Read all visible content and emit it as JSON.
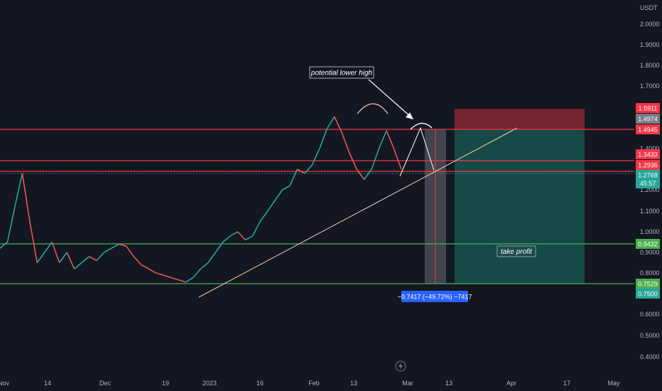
{
  "currency_label": "USDT",
  "y_ticks": [
    "2.0000",
    "1.9000",
    "1.8000",
    "1.7000",
    "1.4000",
    "1.2000",
    "1.1000",
    "1.0000",
    "0.9000",
    "0.8000",
    "0.6000",
    "0.5000",
    "0.4000"
  ],
  "x_ticks": [
    "Nov",
    "14",
    "Dec",
    "19",
    "2023",
    "16",
    "Feb",
    "13",
    "Mar",
    "13",
    "Apr",
    "17",
    "May"
  ],
  "price_tags": {
    "sl_top": "1.5911",
    "entry": "1.4974",
    "level_a": "1.4945",
    "level_b": "1.3433",
    "level_c": "1.2936",
    "current": "1.2768",
    "countdown": "45:57",
    "tp_line": "0.9432",
    "support": "0.7529",
    "target": "0.7500"
  },
  "annotations": {
    "lower_high": "potential lower high",
    "take_profit": "take profit",
    "measure": "−0.7417 (−49.72%) −7417"
  },
  "colors": {
    "background": "#131722",
    "up": "#26a69a",
    "down": "#ef5350",
    "resistance": "#f23645",
    "support": "#4caf50",
    "trend": "#f5c6a5"
  },
  "chart_data": {
    "type": "line",
    "symbol_quote": "USDT",
    "x_ticks": [
      "Nov",
      "14",
      "Dec",
      "19",
      "2023",
      "16",
      "Feb",
      "13",
      "Mar",
      "13",
      "Apr",
      "17",
      "May"
    ],
    "y_ticks": [
      2.0,
      1.9,
      1.8,
      1.7,
      1.4,
      1.2,
      1.1,
      1.0,
      0.9,
      0.8,
      0.6,
      0.5,
      0.4
    ],
    "horizontal_levels": [
      1.4945,
      1.3433,
      1.2936,
      0.9432,
      0.7529
    ],
    "price_labels": [
      1.5911,
      1.4974,
      1.4945,
      1.3433,
      1.2936,
      1.2768,
      0.9432,
      0.7529,
      0.75
    ],
    "current_price": 1.2768,
    "trade": {
      "entry": 1.4974,
      "stop": 1.5911,
      "target": 0.75
    },
    "series": [
      {
        "values": [
          0.92,
          0.95,
          1.12,
          1.28,
          1.05,
          0.85,
          0.9,
          0.95,
          0.85,
          0.9,
          0.82,
          0.85,
          0.88,
          0.86,
          0.9,
          0.92,
          0.94,
          0.93,
          0.88,
          0.84,
          0.82,
          0.8,
          0.79,
          0.78,
          0.77,
          0.76,
          0.78,
          0.82,
          0.85,
          0.9,
          0.95,
          0.98,
          1.0,
          0.96,
          0.98,
          1.05,
          1.1,
          1.15,
          1.2,
          1.22,
          1.3,
          1.28,
          1.32,
          1.4,
          1.5,
          1.56,
          1.48,
          1.38,
          1.3,
          1.25,
          1.3,
          1.4,
          1.49,
          1.4,
          1.3
        ]
      }
    ]
  }
}
